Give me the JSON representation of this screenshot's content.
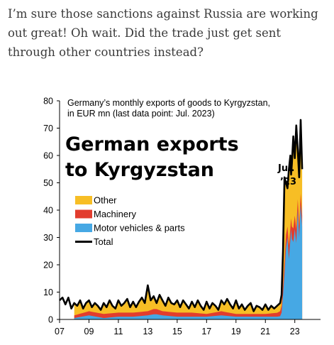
{
  "post": {
    "text": "I’m sure those sanctions against Russia are working out great! Oh wait. Did the trade just get sent through other countries instead?"
  },
  "chart_data": {
    "type": "area",
    "title": "German exports to Kyrgyzstan",
    "subtitle_line1": "Germany’s monthly exports of goods to Kyrgyzstan,",
    "subtitle_line2": "in EUR mn (last data point: Jul. 2023)",
    "annotation_line1": "Jul.",
    "annotation_line2": "’23",
    "x_tick_labels": [
      "07",
      "09",
      "11",
      "13",
      "15",
      "17",
      "19",
      "21",
      "23"
    ],
    "y_ticks": [
      0,
      10,
      20,
      30,
      40,
      50,
      60,
      70,
      80
    ],
    "ylim": [
      0,
      80
    ],
    "xlim": [
      2007.0,
      2024.75
    ],
    "grid": false,
    "legend_position": "top-left",
    "colors": {
      "Other": "#f7be25",
      "Machinery": "#e23d2e",
      "Motor vehicles & parts": "#46a8e4",
      "Total": "#000000"
    },
    "series_points": {
      "Motor vehicles & parts": [
        [
          2008.0,
          0.5
        ],
        [
          2009.0,
          1.5
        ],
        [
          2010.0,
          0.5
        ],
        [
          2011.0,
          1
        ],
        [
          2012.0,
          1
        ],
        [
          2013.0,
          1.5
        ],
        [
          2013.5,
          2
        ],
        [
          2014.0,
          1.5
        ],
        [
          2015.0,
          1
        ],
        [
          2016.0,
          1
        ],
        [
          2017.0,
          1
        ],
        [
          2018.0,
          1.5
        ],
        [
          2019.0,
          1
        ],
        [
          2020.0,
          1
        ],
        [
          2021.0,
          1
        ],
        [
          2021.9,
          1
        ],
        [
          2022.0,
          1.2
        ],
        [
          2022.1,
          2.5
        ],
        [
          2022.25,
          12
        ],
        [
          2022.4,
          26
        ],
        [
          2022.5,
          30
        ],
        [
          2022.6,
          22
        ],
        [
          2022.75,
          33
        ],
        [
          2022.85,
          26
        ],
        [
          2023.0,
          33
        ],
        [
          2023.1,
          28
        ],
        [
          2023.2,
          40
        ],
        [
          2023.3,
          30
        ],
        [
          2023.4,
          42
        ],
        [
          2023.5,
          34
        ],
        [
          2023.55,
          20
        ]
      ],
      "Machinery": [
        [
          2008.0,
          1.5
        ],
        [
          2009.0,
          3
        ],
        [
          2010.0,
          2
        ],
        [
          2011.0,
          2.5
        ],
        [
          2012.0,
          2.5
        ],
        [
          2013.0,
          3
        ],
        [
          2013.5,
          4
        ],
        [
          2014.0,
          3
        ],
        [
          2015.0,
          2.5
        ],
        [
          2016.0,
          2.5
        ],
        [
          2017.0,
          2
        ],
        [
          2018.0,
          3
        ],
        [
          2019.0,
          2
        ],
        [
          2020.0,
          2
        ],
        [
          2021.0,
          2
        ],
        [
          2021.9,
          2.5
        ],
        [
          2022.0,
          3
        ],
        [
          2022.1,
          5
        ],
        [
          2022.25,
          16
        ],
        [
          2022.4,
          31
        ],
        [
          2022.5,
          34
        ],
        [
          2022.6,
          27
        ],
        [
          2022.75,
          37
        ],
        [
          2022.85,
          31
        ],
        [
          2023.0,
          38
        ],
        [
          2023.1,
          33
        ],
        [
          2023.2,
          44
        ],
        [
          2023.3,
          34
        ],
        [
          2023.4,
          46
        ],
        [
          2023.5,
          38
        ],
        [
          2023.55,
          25
        ]
      ],
      "Total": [
        [
          2007.0,
          7
        ],
        [
          2007.2,
          8
        ],
        [
          2007.4,
          5.5
        ],
        [
          2007.6,
          8
        ],
        [
          2007.8,
          4
        ],
        [
          2008.0,
          6
        ],
        [
          2008.2,
          5
        ],
        [
          2008.4,
          7
        ],
        [
          2008.6,
          4
        ],
        [
          2008.8,
          6
        ],
        [
          2009.0,
          7
        ],
        [
          2009.2,
          4.5
        ],
        [
          2009.4,
          6
        ],
        [
          2009.6,
          5
        ],
        [
          2009.8,
          3.5
        ],
        [
          2010.0,
          6
        ],
        [
          2010.2,
          4.5
        ],
        [
          2010.4,
          7
        ],
        [
          2010.6,
          5
        ],
        [
          2010.8,
          4
        ],
        [
          2011.0,
          7
        ],
        [
          2011.2,
          5
        ],
        [
          2011.4,
          6
        ],
        [
          2011.6,
          7.5
        ],
        [
          2011.8,
          4.5
        ],
        [
          2012.0,
          6.5
        ],
        [
          2012.2,
          4.5
        ],
        [
          2012.4,
          6.5
        ],
        [
          2012.6,
          8
        ],
        [
          2012.8,
          6
        ],
        [
          2013.0,
          12.5
        ],
        [
          2013.2,
          7
        ],
        [
          2013.4,
          8.5
        ],
        [
          2013.6,
          6
        ],
        [
          2013.8,
          9
        ],
        [
          2014.0,
          7
        ],
        [
          2014.2,
          5
        ],
        [
          2014.4,
          8
        ],
        [
          2014.6,
          6
        ],
        [
          2014.8,
          5.5
        ],
        [
          2015.0,
          7
        ],
        [
          2015.2,
          4.5
        ],
        [
          2015.4,
          7
        ],
        [
          2015.6,
          5.5
        ],
        [
          2015.8,
          4
        ],
        [
          2016.0,
          6.5
        ],
        [
          2016.2,
          4.5
        ],
        [
          2016.4,
          7
        ],
        [
          2016.6,
          5
        ],
        [
          2016.8,
          3.5
        ],
        [
          2017.0,
          6.5
        ],
        [
          2017.2,
          4
        ],
        [
          2017.4,
          6
        ],
        [
          2017.6,
          5
        ],
        [
          2017.8,
          3.5
        ],
        [
          2018.0,
          7
        ],
        [
          2018.2,
          5.5
        ],
        [
          2018.4,
          7.5
        ],
        [
          2018.6,
          5.5
        ],
        [
          2018.8,
          4
        ],
        [
          2019.0,
          7
        ],
        [
          2019.2,
          4
        ],
        [
          2019.4,
          5.5
        ],
        [
          2019.6,
          3.5
        ],
        [
          2019.8,
          5
        ],
        [
          2020.0,
          6
        ],
        [
          2020.2,
          3
        ],
        [
          2020.4,
          5
        ],
        [
          2020.6,
          4.5
        ],
        [
          2020.8,
          3.5
        ],
        [
          2021.0,
          5.5
        ],
        [
          2021.2,
          3.5
        ],
        [
          2021.4,
          5
        ],
        [
          2021.6,
          4
        ],
        [
          2021.8,
          5
        ],
        [
          2022.0,
          6
        ],
        [
          2022.1,
          9
        ],
        [
          2022.2,
          25
        ],
        [
          2022.3,
          52
        ],
        [
          2022.4,
          50
        ],
        [
          2022.5,
          48
        ],
        [
          2022.6,
          55
        ],
        [
          2022.7,
          60
        ],
        [
          2022.75,
          53
        ],
        [
          2022.8,
          57
        ],
        [
          2022.9,
          67
        ],
        [
          2023.0,
          59
        ],
        [
          2023.1,
          71
        ],
        [
          2023.2,
          62
        ],
        [
          2023.3,
          52
        ],
        [
          2023.4,
          73
        ],
        [
          2023.5,
          55
        ]
      ]
    },
    "legend": [
      "Other",
      "Machinery",
      "Motor vehicles & parts",
      "Total"
    ]
  }
}
